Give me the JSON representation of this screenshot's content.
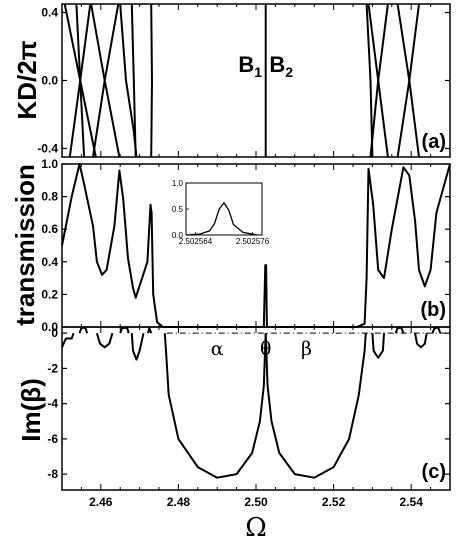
{
  "chart_data": [
    {
      "panel": "(a)",
      "type": "line",
      "ylabel": "KD/2π",
      "ylim": [
        -0.45,
        0.45
      ],
      "xlim": [
        2.45,
        2.55
      ],
      "yticks": [
        "0.4",
        "0.0",
        "-0.4"
      ],
      "ytick_values": [
        0.4,
        0.0,
        -0.4
      ],
      "annotations": [
        {
          "base": "B",
          "sub": "1"
        },
        {
          "base": "B",
          "sub": "2"
        }
      ],
      "annotation_x": [
        2.4985,
        2.5065
      ],
      "series": [
        {
          "x": [
            2.4507,
            2.4547,
            2.4587
          ],
          "y": [
            0.45,
            0.0,
            -0.45
          ]
        },
        {
          "x": [
            2.4537,
            2.4547,
            2.4557
          ],
          "y": [
            0.45,
            0.0,
            -0.45
          ]
        },
        {
          "x": [
            2.4573,
            2.4547,
            2.452
          ],
          "y": [
            0.45,
            0.0,
            -0.45
          ]
        },
        {
          "x": [
            2.4575,
            2.461,
            2.4648
          ],
          "y": [
            0.45,
            0.0,
            -0.45
          ]
        },
        {
          "x": [
            2.4645,
            2.461,
            2.458
          ],
          "y": [
            0.45,
            0.0,
            -0.45
          ]
        },
        {
          "x": [
            2.465,
            2.4655,
            2.4665,
            2.4685,
            2.4692
          ],
          "y": [
            0.45,
            0.3,
            0.0,
            -0.3,
            -0.45
          ]
        },
        {
          "x": [
            2.468,
            2.4685,
            2.469
          ],
          "y": [
            0.45,
            0.0,
            -0.45
          ]
        },
        {
          "x": [
            2.473,
            2.4732,
            2.473
          ],
          "y": [
            0.45,
            0.0,
            -0.45
          ]
        },
        {
          "x": [
            2.5025,
            2.5025
          ],
          "y": [
            0.45,
            -0.45
          ]
        },
        {
          "x": [
            2.5285,
            2.5295,
            2.53
          ],
          "y": [
            0.45,
            0.0,
            -0.45
          ]
        },
        {
          "x": [
            2.529,
            2.5315,
            2.534
          ],
          "y": [
            0.45,
            0.0,
            -0.45
          ]
        },
        {
          "x": [
            2.534,
            2.5315,
            2.5295
          ],
          "y": [
            0.45,
            0.0,
            -0.45
          ]
        },
        {
          "x": [
            2.5365,
            2.5395,
            2.542
          ],
          "y": [
            0.45,
            0.0,
            -0.45
          ]
        },
        {
          "x": [
            2.542,
            2.5395,
            2.5365
          ],
          "y": [
            0.45,
            0.0,
            -0.45
          ]
        }
      ]
    },
    {
      "panel": "(b)",
      "type": "line",
      "ylabel": "transmission",
      "ylim": [
        0.0,
        1.0
      ],
      "xlim": [
        2.45,
        2.55
      ],
      "yticks": [
        "1.0",
        "0.8",
        "0.6",
        "0.4",
        "0.2",
        "0.0"
      ],
      "ytick_values": [
        1.0,
        0.8,
        0.6,
        0.4,
        0.2,
        0.0
      ],
      "series": [
        {
          "x": [
            2.45,
            2.4525,
            2.4545,
            2.4555,
            2.458,
            2.459,
            2.4603,
            2.4615,
            2.4635,
            2.4648,
            2.4658,
            2.467,
            2.4683,
            2.469,
            2.472,
            2.4728,
            2.4731,
            2.4735,
            2.4745,
            2.476,
            2.478,
            2.485,
            2.495,
            2.502,
            2.5024,
            2.5026,
            2.5028,
            2.5035,
            2.51,
            2.52,
            2.526,
            2.528,
            2.5285,
            2.529,
            2.5302,
            2.5315,
            2.533,
            2.535,
            2.538,
            2.5395,
            2.541,
            2.542,
            2.5435,
            2.545,
            2.5465,
            2.55
          ],
          "y": [
            0.5,
            0.8,
            1.0,
            0.9,
            0.62,
            0.4,
            0.32,
            0.35,
            0.62,
            0.96,
            0.78,
            0.42,
            0.24,
            0.18,
            0.4,
            0.75,
            0.7,
            0.2,
            0.03,
            0.0,
            0.0,
            0.0,
            0.0,
            0.0,
            0.38,
            0.38,
            0.0,
            0.0,
            0.0,
            0.0,
            0.0,
            0.02,
            0.3,
            0.97,
            0.75,
            0.35,
            0.3,
            0.6,
            0.98,
            0.93,
            0.65,
            0.35,
            0.25,
            0.35,
            0.7,
            1.0
          ]
        }
      ],
      "inset": {
        "xlim": [
          2.502562,
          2.502578
        ],
        "ylim": [
          0.0,
          1.0
        ],
        "xticks": [
          "2.502564",
          "2.502576"
        ],
        "xtick_values": [
          2.502564,
          2.502576
        ],
        "yticks": [
          "0.0",
          "0.5",
          "1.0"
        ],
        "ytick_values": [
          0.0,
          0.5,
          1.0
        ],
        "x": [
          2.502562,
          2.502565,
          2.502567,
          2.502568,
          2.502569,
          2.50257,
          2.502571,
          2.502572,
          2.502574,
          2.502577
        ],
        "y": [
          0.0,
          0.02,
          0.08,
          0.22,
          0.5,
          0.62,
          0.48,
          0.2,
          0.05,
          0.0
        ]
      }
    },
    {
      "panel": "(c)",
      "type": "line",
      "ylabel": "Im(β)",
      "ylim": [
        -8.9,
        0.35
      ],
      "xlim": [
        2.45,
        2.55
      ],
      "xlabel": "Ω",
      "yticks": [
        "0",
        "-2",
        "-4",
        "-6",
        "-8"
      ],
      "ytick_values": [
        0,
        -2,
        -4,
        -6,
        -8
      ],
      "xticks": [
        "2.46",
        "2.48",
        "2.50",
        "2.52",
        "2.54"
      ],
      "xtick_values": [
        2.46,
        2.48,
        2.5,
        2.52,
        2.54
      ],
      "dashdot_zero_line": true,
      "dashdot_from_x": 2.477,
      "annotations": [
        "α",
        "θ",
        "β"
      ],
      "annotation_x": [
        2.49,
        2.5025,
        2.513
      ],
      "annotation_y": [
        -0.9,
        -0.9,
        -0.9
      ],
      "series": [
        {
          "x": [
            2.45,
            2.451,
            2.4525,
            2.453
          ],
          "y": [
            -0.8,
            -0.3,
            -0.3,
            0.0
          ]
        },
        {
          "x": [
            2.4545,
            2.455,
            2.456,
            2.4565
          ],
          "y": [
            0.0,
            0.3,
            0.3,
            0.0
          ]
        },
        {
          "x": [
            2.459,
            2.4598,
            2.461,
            2.4622,
            2.463
          ],
          "y": [
            0.0,
            -0.6,
            -0.8,
            -0.6,
            0.0
          ]
        },
        {
          "x": [
            2.465,
            2.4655,
            2.4668,
            2.4672
          ],
          "y": [
            0.0,
            0.3,
            0.3,
            0.0
          ]
        },
        {
          "x": [
            2.468,
            2.4683,
            2.4692,
            2.47,
            2.471
          ],
          "y": [
            0.0,
            -1.0,
            -1.5,
            -1.0,
            0.0
          ]
        },
        {
          "x": [
            2.4722,
            2.4725,
            2.473
          ],
          "y": [
            0.0,
            0.3,
            0.0
          ]
        },
        {
          "x": [
            2.4765,
            2.4768,
            2.4775,
            2.48,
            2.485,
            2.49,
            2.495,
            2.499,
            2.501,
            2.502,
            2.5025
          ],
          "y": [
            0.0,
            -1.0,
            -3.5,
            -6.0,
            -7.6,
            -8.2,
            -8.0,
            -6.8,
            -5.0,
            -3.0,
            0.0
          ]
        },
        {
          "x": [
            2.5025,
            2.503,
            2.504,
            2.506,
            2.51,
            2.515,
            2.52,
            2.524,
            2.5265,
            2.528,
            2.5283
          ],
          "y": [
            0.0,
            -3.0,
            -5.0,
            -6.8,
            -8.0,
            -8.2,
            -7.6,
            -6.0,
            -3.5,
            -1.0,
            0.0
          ]
        },
        {
          "x": [
            2.53,
            2.5303,
            2.5315,
            2.5327,
            2.533
          ],
          "y": [
            0.0,
            -1.0,
            -1.4,
            -1.0,
            0.0
          ]
        },
        {
          "x": [
            2.536,
            2.5365,
            2.5375,
            2.538
          ],
          "y": [
            0.0,
            0.3,
            0.3,
            0.0
          ]
        },
        {
          "x": [
            2.541,
            2.5415,
            2.5425,
            2.5435,
            2.544
          ],
          "y": [
            0.0,
            -0.6,
            -0.8,
            -0.6,
            0.0
          ]
        },
        {
          "x": [
            2.5455,
            2.546,
            2.547,
            2.5475
          ],
          "y": [
            0.0,
            0.3,
            0.3,
            0.0
          ]
        }
      ]
    }
  ]
}
